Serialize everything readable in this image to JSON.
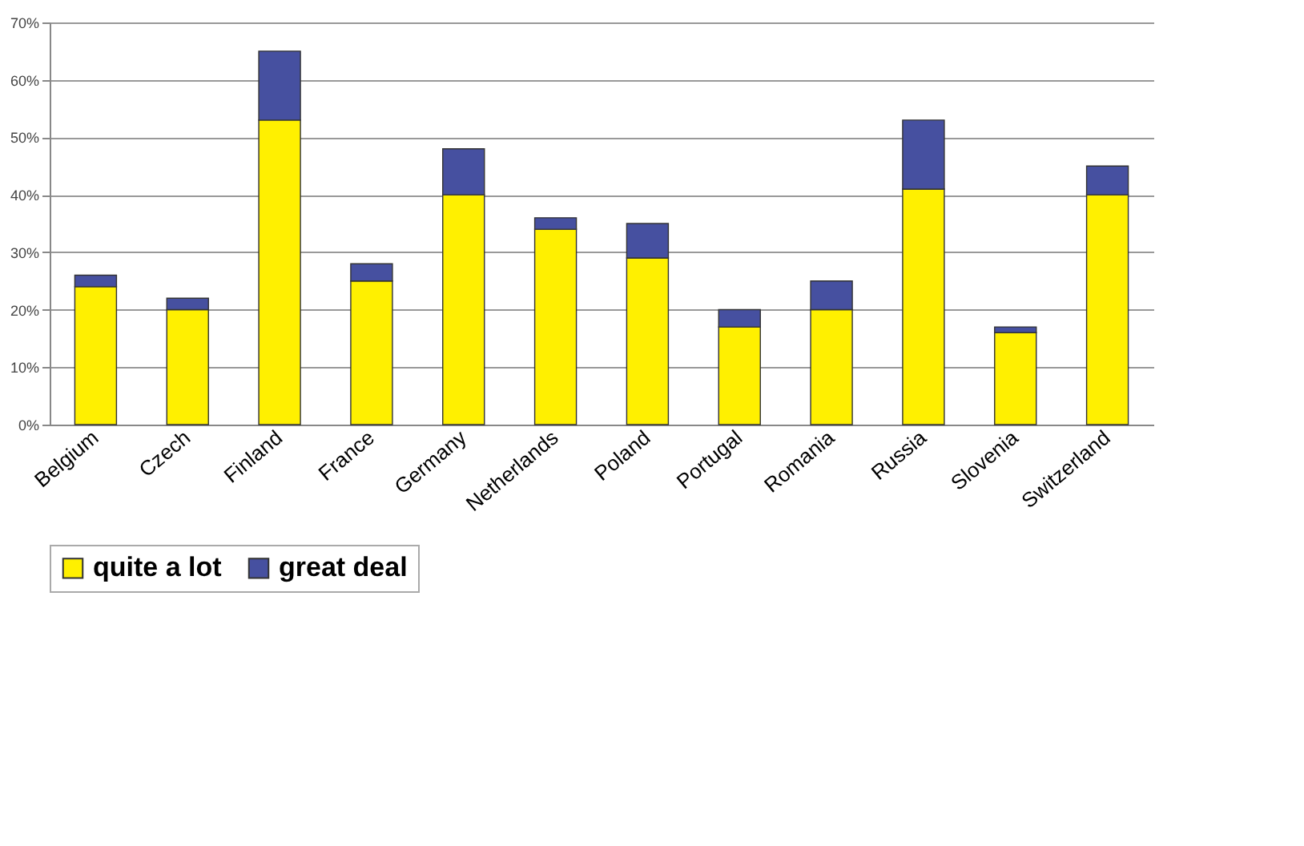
{
  "chart_data": {
    "type": "bar",
    "stacked": true,
    "categories": [
      "Belgium",
      "Czech",
      "Finland",
      "France",
      "Germany",
      "Netherlands",
      "Poland",
      "Portugal",
      "Romania",
      "Russia",
      "Slovenia",
      "Switzerland"
    ],
    "series": [
      {
        "name": "quite a lot",
        "color": "#fff000",
        "values": [
          24,
          20,
          53,
          25,
          40,
          34,
          29,
          17,
          20,
          41,
          16,
          40
        ]
      },
      {
        "name": "great deal",
        "color": "#4650a0",
        "values": [
          2,
          2,
          12,
          3,
          8,
          2,
          6,
          3,
          5,
          12,
          1,
          5
        ]
      }
    ],
    "ylim": [
      0,
      70
    ],
    "yticks": [
      {
        "value": 0,
        "label": "0%"
      },
      {
        "value": 10,
        "label": "10%"
      },
      {
        "value": 20,
        "label": "20%"
      },
      {
        "value": 30,
        "label": "30%"
      },
      {
        "value": 40,
        "label": "40%"
      },
      {
        "value": 50,
        "label": "50%"
      },
      {
        "value": 60,
        "label": "60%"
      },
      {
        "value": 70,
        "label": "70%"
      }
    ],
    "grid": "y",
    "legend": "bottom"
  }
}
